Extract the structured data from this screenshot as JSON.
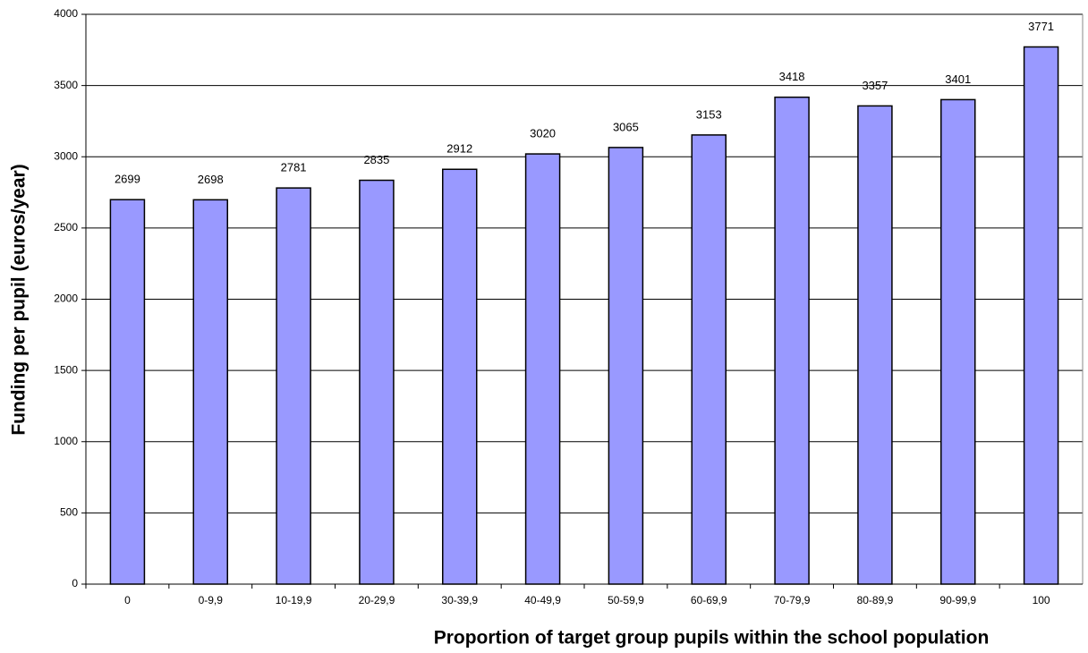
{
  "chart_data": {
    "type": "bar",
    "ylabel": "Funding per pupil (euros/year)",
    "xlabel": "Proportion of target group pupils within the school population",
    "categories": [
      "0",
      "0-9,9",
      "10-19,9",
      "20-29,9",
      "30-39,9",
      "40-49,9",
      "50-59,9",
      "60-69,9",
      "70-79,9",
      "80-89,9",
      "90-99,9",
      "100"
    ],
    "values": [
      2699,
      2698,
      2781,
      2835,
      2912,
      3020,
      3065,
      3153,
      3418,
      3357,
      3401,
      3771
    ],
    "color": "#9999ff",
    "ylim": [
      0,
      4000
    ],
    "yticks": [
      0,
      500,
      1000,
      1500,
      2000,
      2500,
      3000,
      3500,
      4000
    ],
    "grid": true
  }
}
